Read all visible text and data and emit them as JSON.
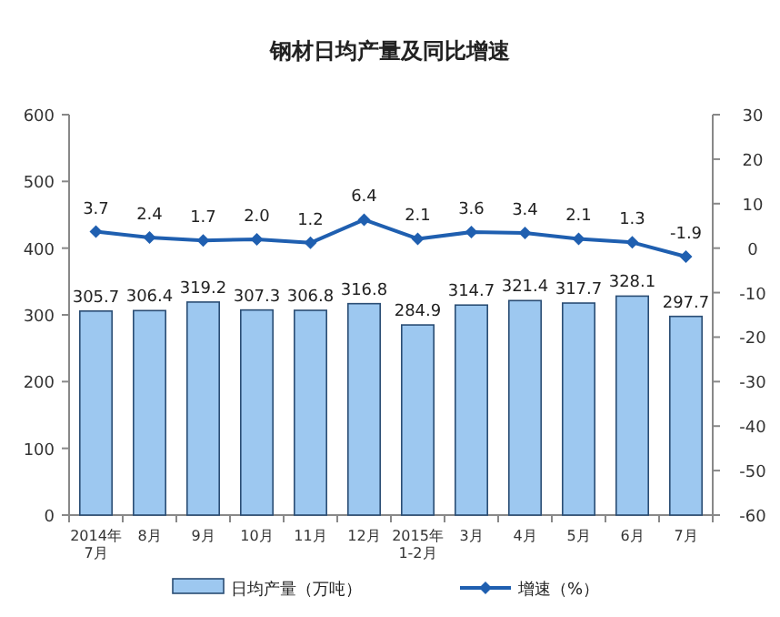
{
  "chart_data": {
    "type": "bar",
    "title": "钢材日均产量及同比增速",
    "categories": [
      "2014年\n7月",
      "8月",
      "9月",
      "10月",
      "11月",
      "12月",
      "2015年\n1-2月",
      "3月",
      "4月",
      "5月",
      "6月",
      "7月"
    ],
    "series": [
      {
        "name": "日均产量（万吨）",
        "color": "#9dc8f0",
        "values": [
          305.7,
          306.4,
          319.2,
          307.3,
          306.8,
          316.8,
          284.9,
          314.7,
          321.4,
          317.7,
          328.1,
          297.7
        ],
        "value_labels": [
          "305.7",
          "306.4",
          "319.2",
          "307.3",
          "306.8",
          "316.8",
          "284.9",
          "314.7",
          "321.4",
          "317.7",
          "328.1",
          "297.7"
        ]
      },
      {
        "name": "增速（%）",
        "type": "line",
        "axis": "y2",
        "color": "#1f5fb0",
        "marker": "diamond",
        "values": [
          3.7,
          2.4,
          1.7,
          2.0,
          1.2,
          6.4,
          2.1,
          3.6,
          3.4,
          2.1,
          1.3,
          -1.9
        ],
        "value_labels": [
          "3.7",
          "2.4",
          "1.7",
          "2.0",
          "1.2",
          "6.4",
          "2.1",
          "3.6",
          "3.4",
          "2.1",
          "1.3",
          "-1.9"
        ]
      }
    ],
    "ylim": [
      0,
      600
    ],
    "yticks": [
      0,
      100,
      200,
      300,
      400,
      500,
      600
    ],
    "y2lim": [
      -60,
      30
    ],
    "y2ticks": [
      -60,
      -50,
      -40,
      -30,
      -20,
      -10,
      0,
      10,
      20,
      30
    ],
    "legend": "bottom",
    "grid": false
  }
}
